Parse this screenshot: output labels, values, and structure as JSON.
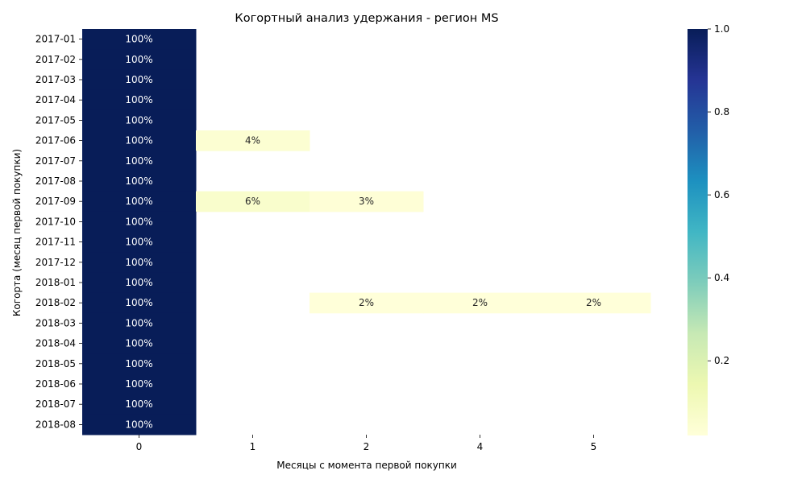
{
  "chart_data": {
    "type": "heatmap",
    "title": "Когортный анализ удержания - регион MS",
    "xlabel": "Месяцы с момента первой покупки",
    "ylabel": "Когорта (месяц первой покупки)",
    "x_categories": [
      "0",
      "1",
      "2",
      "4",
      "5"
    ],
    "y_categories": [
      "2017-01",
      "2017-02",
      "2017-03",
      "2017-04",
      "2017-05",
      "2017-06",
      "2017-07",
      "2017-08",
      "2017-09",
      "2017-10",
      "2017-11",
      "2017-12",
      "2018-01",
      "2018-02",
      "2018-03",
      "2018-04",
      "2018-05",
      "2018-06",
      "2018-07",
      "2018-08"
    ],
    "values": [
      [
        1.0,
        null,
        null,
        null,
        null
      ],
      [
        1.0,
        null,
        null,
        null,
        null
      ],
      [
        1.0,
        null,
        null,
        null,
        null
      ],
      [
        1.0,
        null,
        null,
        null,
        null
      ],
      [
        1.0,
        null,
        null,
        null,
        null
      ],
      [
        1.0,
        0.04,
        null,
        null,
        null
      ],
      [
        1.0,
        null,
        null,
        null,
        null
      ],
      [
        1.0,
        null,
        null,
        null,
        null
      ],
      [
        1.0,
        0.06,
        0.03,
        null,
        null
      ],
      [
        1.0,
        null,
        null,
        null,
        null
      ],
      [
        1.0,
        null,
        null,
        null,
        null
      ],
      [
        1.0,
        null,
        null,
        null,
        null
      ],
      [
        1.0,
        null,
        null,
        null,
        null
      ],
      [
        1.0,
        null,
        0.02,
        0.02,
        0.02
      ],
      [
        1.0,
        null,
        null,
        null,
        null
      ],
      [
        1.0,
        null,
        null,
        null,
        null
      ],
      [
        1.0,
        null,
        null,
        null,
        null
      ],
      [
        1.0,
        null,
        null,
        null,
        null
      ],
      [
        1.0,
        null,
        null,
        null,
        null
      ],
      [
        1.0,
        null,
        null,
        null,
        null
      ]
    ],
    "value_format": "percent",
    "colorbar": {
      "colormap": "YlGnBu",
      "min": 0.02,
      "max": 1.0,
      "ticks": [
        "0.2",
        "0.4",
        "0.6",
        "0.8",
        "1.0"
      ],
      "tick_values": [
        0.2,
        0.4,
        0.6,
        0.8,
        1.0
      ]
    },
    "grid": false,
    "legend": "colorbar-right"
  }
}
